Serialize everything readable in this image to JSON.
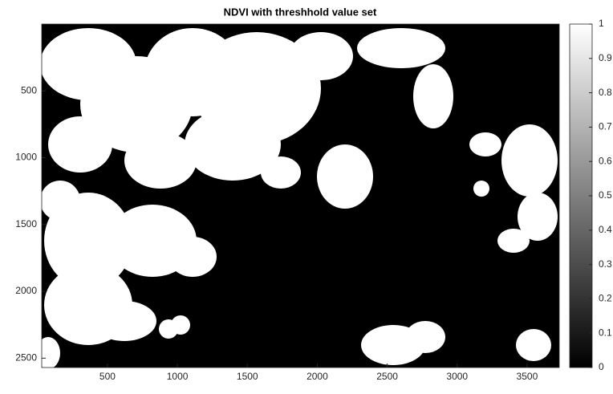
{
  "chart_data": {
    "type": "image",
    "title": "NDVI with threshhold value set",
    "xlim": [
      30,
      3730
    ],
    "xticks": [
      500,
      1000,
      1500,
      2000,
      2500,
      3000,
      3500
    ],
    "ylim": [
      0,
      2570
    ],
    "yticks": [
      500,
      1000,
      1500,
      2000,
      2500
    ],
    "y_reversed": true,
    "colorbar": {
      "lim": [
        0,
        1
      ],
      "ticks": [
        0,
        0.1,
        0.2,
        0.3,
        0.4,
        0.5,
        0.6,
        0.7,
        0.8,
        0.9,
        1
      ]
    }
  }
}
